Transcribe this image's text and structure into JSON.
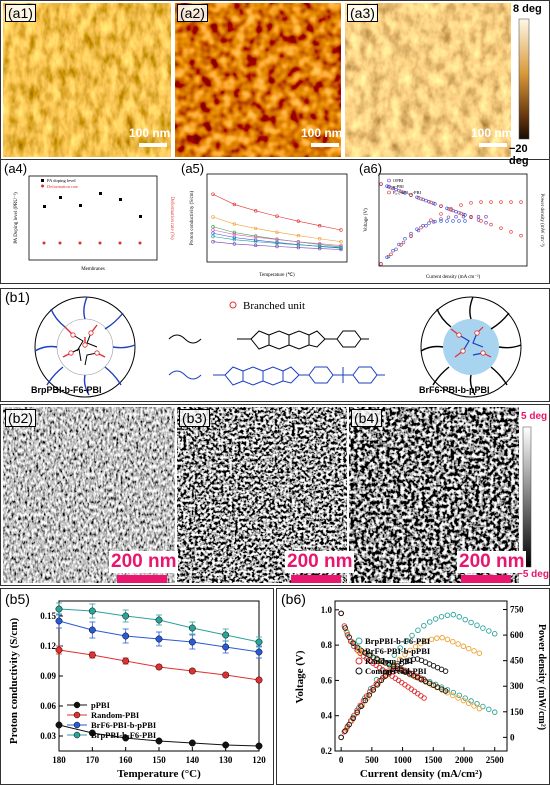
{
  "labels": {
    "a1": "(a1)",
    "a2": "(a2)",
    "a3": "(a3)",
    "a4": "(a4)",
    "a5": "(a5)",
    "a6": "(a6)",
    "b1": "(b1)",
    "b2": "(b2)",
    "b3": "(b3)",
    "b4": "(b4)",
    "b5": "(b5)",
    "b6": "(b6)"
  },
  "afm_top": {
    "scale": "100 nm",
    "colorbar_max": "8 deg",
    "colorbar_min": "−20 deg"
  },
  "afm_bottom": {
    "scale": "200 nm",
    "colorbar_max": "5 deg",
    "colorbar_min": "−5 deg"
  },
  "b1": {
    "branched_unit": "Branched unit",
    "left_caption": "BrpPBI-b-F6-PBI",
    "right_caption": "BrF6-PBI-b-pPBI"
  },
  "a4": {
    "ylabel": "PA Doping  level (PRU⁻¹)",
    "y2label": "Deformation rate (%)",
    "xlabel": "Membranes",
    "legend": [
      "PA doping level",
      "Deformation rate"
    ]
  },
  "a5": {
    "xlabel": "Temperature (℃)",
    "ylabel": "Proton conductivity (S/cm)"
  },
  "a6": {
    "xlabel": "Current density (mA cm⁻²)",
    "ylabel": "Voltage (V)",
    "y2label": "Power density (mW cm⁻²)",
    "legend": [
      "OPBI",
      "p-PBI",
      "P₀.₅-b-O₀.₅-PBI"
    ]
  },
  "colors": {
    "black": "#111111",
    "red": "#e03030",
    "blue": "#2a5ad8",
    "teal": "#2aa39a",
    "orange": "#f0a030",
    "pink_scale": "#e8166e",
    "light_blue": "#a8d4f0"
  },
  "chart_data": [
    {
      "id": "b5",
      "type": "line",
      "title": "",
      "xlabel": "Temperature (°C)",
      "ylabel": "Proton conductivity (S/cm)",
      "x": [
        180,
        170,
        160,
        150,
        140,
        130,
        120
      ],
      "xlim": [
        180,
        120
      ],
      "ylim": [
        0.015,
        0.165
      ],
      "yticks": [
        0.03,
        0.06,
        0.09,
        0.12,
        0.15
      ],
      "xticks": [
        180,
        170,
        160,
        150,
        140,
        130,
        120
      ],
      "legend_position": "bottom-left",
      "series": [
        {
          "name": "pPBI",
          "color": "#111111",
          "marker": "circle",
          "values": [
            0.041,
            0.033,
            0.028,
            0.025,
            0.023,
            0.021,
            0.02
          ],
          "err": [
            0,
            0,
            0,
            0,
            0,
            0,
            0
          ]
        },
        {
          "name": "Random-PBI",
          "color": "#e03030",
          "marker": "circle",
          "values": [
            0.116,
            0.111,
            0.105,
            0.099,
            0.095,
            0.091,
            0.086
          ],
          "err": [
            0.004,
            0.003,
            0.003,
            0.002,
            0.002,
            0.002,
            0.002
          ]
        },
        {
          "name": "BrF6-PBI-b-pPBI",
          "color": "#2a5ad8",
          "marker": "circle",
          "values": [
            0.145,
            0.136,
            0.13,
            0.127,
            0.124,
            0.119,
            0.114
          ],
          "err": [
            0.007,
            0.008,
            0.007,
            0.007,
            0.007,
            0.006,
            0.006
          ]
        },
        {
          "name": "BrpPBI-b-F6-PBI",
          "color": "#2aa39a",
          "marker": "circle",
          "values": [
            0.157,
            0.155,
            0.15,
            0.146,
            0.138,
            0.131,
            0.124
          ],
          "err": [
            0.006,
            0.007,
            0.006,
            0.005,
            0.006,
            0.006,
            0.005
          ]
        }
      ]
    },
    {
      "id": "b6",
      "type": "line",
      "title": "",
      "xlabel": "Current density (mA/cm²)",
      "ylabel": "Voltage (V)",
      "y2label": "Power density (mW/cm²)",
      "xlim": [
        -100,
        2700
      ],
      "ylim": [
        0.2,
        1.05
      ],
      "y2lim": [
        -80,
        800
      ],
      "xticks": [
        0,
        500,
        1000,
        1500,
        2000,
        2500
      ],
      "yticks": [
        0.2,
        0.4,
        0.6,
        0.8,
        1.0
      ],
      "y2ticks": [
        0,
        150,
        300,
        450,
        600,
        750
      ],
      "legend_position": "top-left",
      "series": [
        {
          "name": "BrpPBI-b-F6-PBI",
          "color": "#2aa39a",
          "xmax": 2500,
          "v_end": 0.24,
          "p_max": 720
        },
        {
          "name": "BrF6-PBI-b-pPBI",
          "color": "#f0a030",
          "xmax": 2250,
          "v_end": 0.26,
          "p_max": 585
        },
        {
          "name": "Random-PBI",
          "color": "#e03030",
          "xmax": 1350,
          "v_end": 0.32,
          "p_max": 400
        },
        {
          "name": "Commercial-PBI",
          "color": "#111111",
          "xmax": 1700,
          "v_end": 0.36,
          "p_max": 460
        }
      ]
    }
  ]
}
